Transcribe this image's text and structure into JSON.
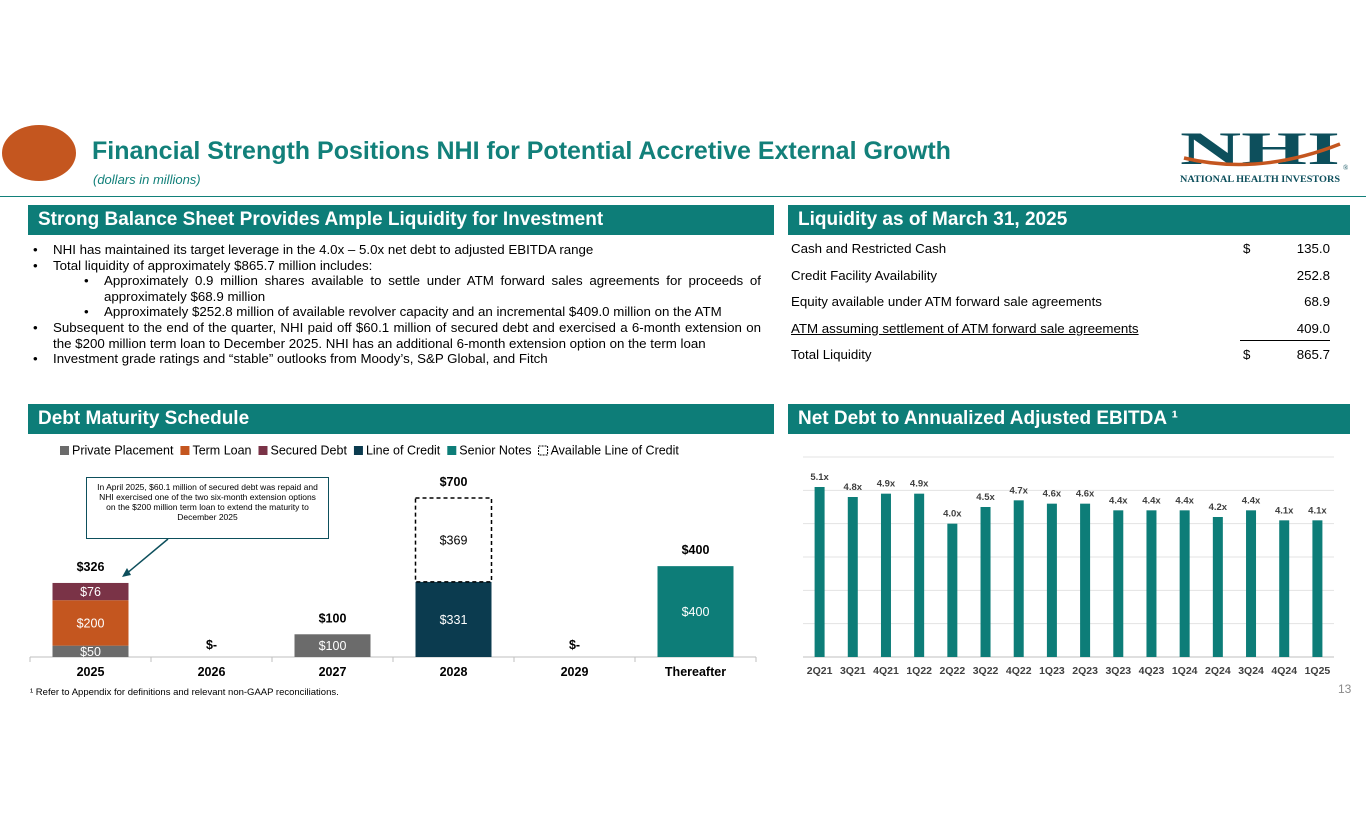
{
  "title": "Financial Strength Positions NHI for Potential Accretive External Growth",
  "subtitle": "(dollars in millions)",
  "logo": {
    "mark": "NHI",
    "caption": "NATIONAL HEALTH INVESTORS",
    "registered": "®"
  },
  "sections": {
    "balance_sheet": "Strong Balance Sheet Provides Ample Liquidity for Investment",
    "liquidity": "Liquidity as of March 31, 2025",
    "debt_maturity": "Debt Maturity Schedule",
    "net_debt": "Net Debt to Annualized Adjusted EBITDA ¹"
  },
  "bullets": [
    {
      "level": 1,
      "text": "NHI has maintained its target leverage in the 4.0x – 5.0x net debt to adjusted EBITDA range"
    },
    {
      "level": 1,
      "text": "Total liquidity of approximately $865.7 million includes:"
    },
    {
      "level": 2,
      "text": "Approximately 0.9 million shares available to settle under ATM forward sales agreements for proceeds of approximately $68.9 million"
    },
    {
      "level": 2,
      "text": "Approximately $252.8 million of available revolver capacity and an incremental $409.0 million on the ATM"
    },
    {
      "level": 1,
      "text": "Subsequent to the end of the quarter, NHI paid off $60.1 million of secured debt and exercised a 6-month extension on the $200 million term loan to December 2025.  NHI has an additional 6-month extension option on the term loan"
    },
    {
      "level": 1,
      "text": "Investment grade ratings and “stable” outlooks from Moody’s, S&P Global, and Fitch"
    }
  ],
  "liquidity_table": [
    {
      "label": "Cash and Restricted Cash",
      "currency": "$",
      "value": "135.0",
      "underline": false
    },
    {
      "label": "Credit Facility Availability",
      "currency": "",
      "value": "252.8",
      "underline": false
    },
    {
      "label": "Equity available under ATM forward sale agreements",
      "currency": "",
      "value": "68.9",
      "underline": false
    },
    {
      "label": "ATM assuming settlement of ATM forward sale agreements",
      "currency": "",
      "value": "409.0",
      "underline": true
    },
    {
      "label": "Total Liquidity",
      "currency": "$",
      "value": "865.7",
      "underline": false
    }
  ],
  "callout": "In April 2025, $60.1 million of secured debt was repaid and NHI exercised one of the two six-month extension options on the $200 million term loan to extend the maturity to December 2025",
  "footnote": "¹ Refer to Appendix for definitions and relevant non-GAAP reconciliations.",
  "page_number": "13",
  "colors": {
    "teal": "#0d7d78",
    "orange": "#c4561f",
    "private_placement": "#6b6b6b",
    "term_loan": "#c4561f",
    "secured_debt": "#7a3347",
    "line_of_credit": "#0b3b4f",
    "senior_notes": "#0d7d78"
  },
  "chart_data": [
    {
      "type": "bar",
      "stacked": true,
      "title": "Debt Maturity Schedule",
      "categories": [
        "2025",
        "2026",
        "2027",
        "2028",
        "2029",
        "Thereafter"
      ],
      "legend": [
        "Private Placement",
        "Term Loan",
        "Secured Debt",
        "Line of Credit",
        "Senior Notes",
        "Available Line of Credit"
      ],
      "series": [
        {
          "name": "Private Placement",
          "values": [
            50,
            0,
            100,
            0,
            0,
            0
          ],
          "labels": [
            "$50",
            "",
            "$100",
            "",
            "",
            ""
          ]
        },
        {
          "name": "Term Loan",
          "values": [
            200,
            0,
            0,
            0,
            0,
            0
          ],
          "labels": [
            "$200",
            "",
            "",
            "",
            "",
            ""
          ]
        },
        {
          "name": "Secured Debt",
          "values": [
            76,
            0,
            0,
            0,
            0,
            0
          ],
          "labels": [
            "$76",
            "",
            "",
            "",
            "",
            ""
          ]
        },
        {
          "name": "Line of Credit",
          "values": [
            0,
            0,
            0,
            331,
            0,
            0
          ],
          "labels": [
            "",
            "",
            "",
            "$331",
            "",
            ""
          ]
        },
        {
          "name": "Senior Notes",
          "values": [
            0,
            0,
            0,
            0,
            0,
            400
          ],
          "labels": [
            "",
            "",
            "",
            "",
            "",
            "$400"
          ]
        },
        {
          "name": "Available Line of Credit",
          "values": [
            0,
            0,
            0,
            369,
            0,
            0
          ],
          "labels": [
            "",
            "",
            "",
            "$369",
            "",
            ""
          ]
        }
      ],
      "totals": [
        "$326",
        "$-",
        "$100",
        "$700",
        "$-",
        "$400"
      ],
      "ylim": [
        0,
        700
      ]
    },
    {
      "type": "bar",
      "title": "Net Debt to Annualized Adjusted EBITDA ¹",
      "categories": [
        "2Q21",
        "3Q21",
        "4Q21",
        "1Q22",
        "2Q22",
        "3Q22",
        "4Q22",
        "1Q23",
        "2Q23",
        "3Q23",
        "4Q23",
        "1Q24",
        "2Q24",
        "3Q24",
        "4Q24",
        "1Q25"
      ],
      "values": [
        5.1,
        4.8,
        4.9,
        4.9,
        4.0,
        4.5,
        4.7,
        4.6,
        4.6,
        4.4,
        4.4,
        4.4,
        4.2,
        4.4,
        4.1,
        4.1
      ],
      "labels": [
        "5.1x",
        "4.8x",
        "4.9x",
        "4.9x",
        "4.0x",
        "4.5x",
        "4.7x",
        "4.6x",
        "4.6x",
        "4.4x",
        "4.4x",
        "4.4x",
        "4.2x",
        "4.4x",
        "4.1x",
        "4.1x"
      ],
      "ylim": [
        0,
        6
      ],
      "grid": true
    }
  ]
}
